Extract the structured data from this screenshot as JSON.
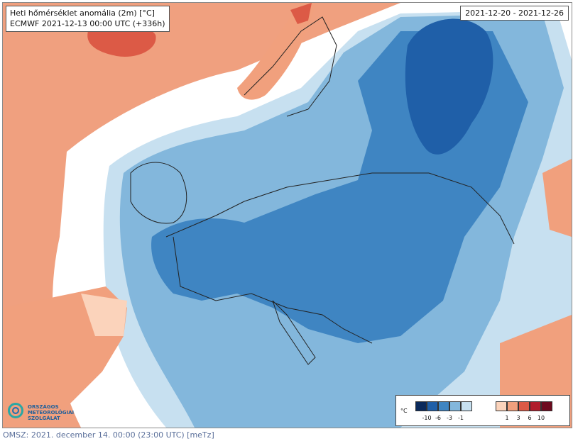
{
  "header": {
    "title_line1": "Heti hőmérséklet anomália (2m) [°C]",
    "title_line2": "ECMWF 2021-12-13 00:00 UTC (+336h)",
    "date_range": "2021-12-20 - 2021-12-26"
  },
  "legend": {
    "unit": "°C",
    "cold_colors": [
      "#0b2a5c",
      "#1f5fa8",
      "#3f85c2",
      "#83b7dc",
      "#c7e0f0"
    ],
    "warm_colors": [
      "#fbd3bb",
      "#f1a07d",
      "#dc5a46",
      "#b11e2c",
      "#6d0a1e"
    ],
    "cold_ticks": [
      "-10",
      "-6",
      "-3",
      "-1"
    ],
    "warm_ticks": [
      "1",
      "3",
      "6",
      "10"
    ]
  },
  "logo": {
    "line1": "ORSZÁGOS",
    "line2": "METEOROLÓGIAI",
    "line3": "SZOLGÁLAT"
  },
  "footer": {
    "text": "OMSZ: 2021. december 14. 00:00 (23:00  UTC)  [meTz]"
  }
}
